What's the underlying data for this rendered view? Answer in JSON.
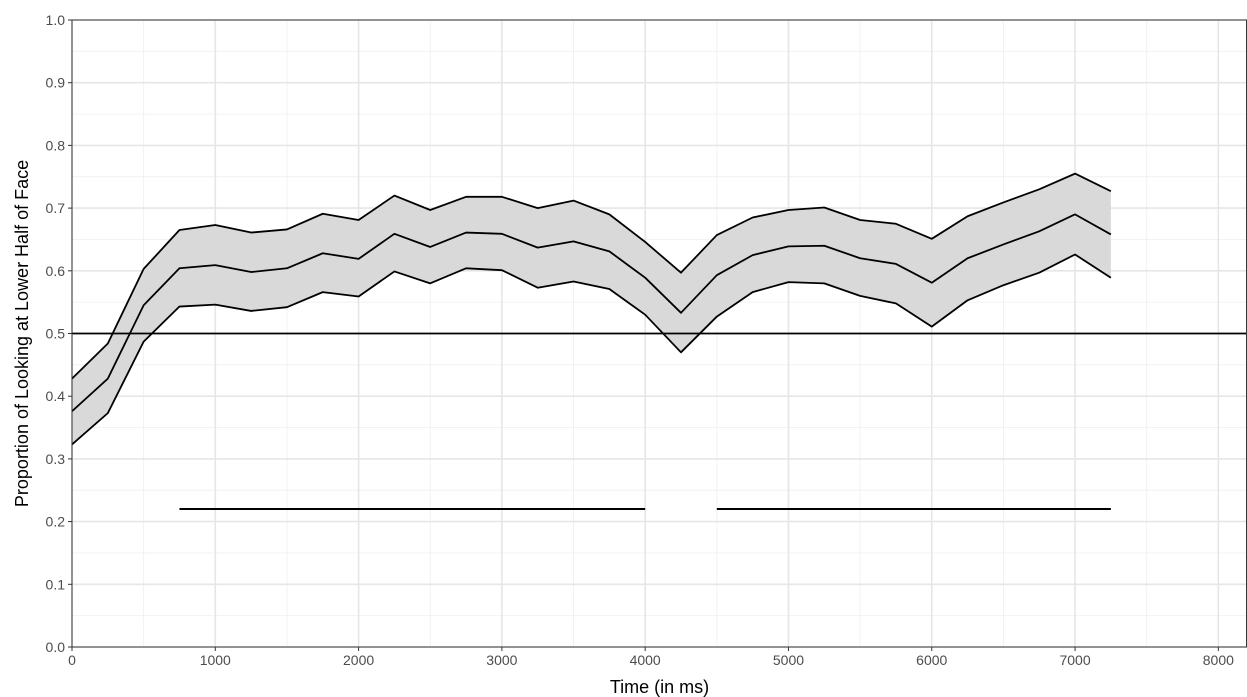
{
  "chart_data": {
    "type": "line",
    "title": "",
    "xlabel": "Time (in ms)",
    "ylabel": "Proportion of Looking at Lower Half of Face",
    "xlim": [
      0,
      8200
    ],
    "ylim": [
      0,
      1.0
    ],
    "x_ticks": [
      0,
      1000,
      2000,
      3000,
      4000,
      5000,
      6000,
      7000,
      8000
    ],
    "x_tick_labels": [
      "0",
      "1000",
      "2000",
      "3000",
      "4000",
      "5000",
      "6000",
      "7000",
      "8000"
    ],
    "y_ticks": [
      0.0,
      0.1,
      0.2,
      0.3,
      0.4,
      0.5,
      0.6,
      0.7,
      0.8,
      0.9,
      1.0
    ],
    "y_tick_labels": [
      "0.0",
      "0.1",
      "0.2",
      "0.3",
      "0.4",
      "0.5",
      "0.6",
      "0.7",
      "0.8",
      "0.9",
      "1.0"
    ],
    "grid": true,
    "x": [
      0,
      250,
      500,
      750,
      1000,
      1250,
      1500,
      1750,
      2000,
      2250,
      2500,
      2750,
      3000,
      3250,
      3500,
      3750,
      4000,
      4250,
      4500,
      4750,
      5000,
      5250,
      5500,
      5750,
      6000,
      6250,
      6500,
      6750,
      7000,
      7250
    ],
    "series": [
      {
        "values": [
          0.376,
          0.428,
          0.545,
          0.604,
          0.609,
          0.598,
          0.604,
          0.628,
          0.619,
          0.659,
          0.638,
          0.661,
          0.659,
          0.637,
          0.647,
          0.631,
          0.589,
          0.533,
          0.593,
          0.625,
          0.639,
          0.64,
          0.62,
          0.611,
          0.581,
          0.62,
          0.642,
          0.663,
          0.69,
          0.658
        ],
        "lower": [
          0.323,
          0.373,
          0.487,
          0.543,
          0.546,
          0.536,
          0.542,
          0.566,
          0.559,
          0.599,
          0.58,
          0.604,
          0.601,
          0.573,
          0.583,
          0.571,
          0.53,
          0.47,
          0.527,
          0.566,
          0.582,
          0.58,
          0.56,
          0.548,
          0.511,
          0.553,
          0.577,
          0.597,
          0.626,
          0.589
        ],
        "upper": [
          0.428,
          0.484,
          0.603,
          0.665,
          0.673,
          0.661,
          0.666,
          0.691,
          0.681,
          0.72,
          0.697,
          0.718,
          0.718,
          0.7,
          0.712,
          0.69,
          0.646,
          0.597,
          0.657,
          0.685,
          0.697,
          0.701,
          0.681,
          0.675,
          0.651,
          0.687,
          0.709,
          0.73,
          0.755,
          0.727
        ],
        "line_color": "#000000",
        "band_color": "#d9d9d9"
      }
    ],
    "reference_line": {
      "y": 0.5
    },
    "significance_segments": [
      {
        "y": 0.22,
        "x_start": 750,
        "x_end": 4000
      },
      {
        "y": 0.22,
        "x_start": 4500,
        "x_end": 7250
      }
    ]
  }
}
